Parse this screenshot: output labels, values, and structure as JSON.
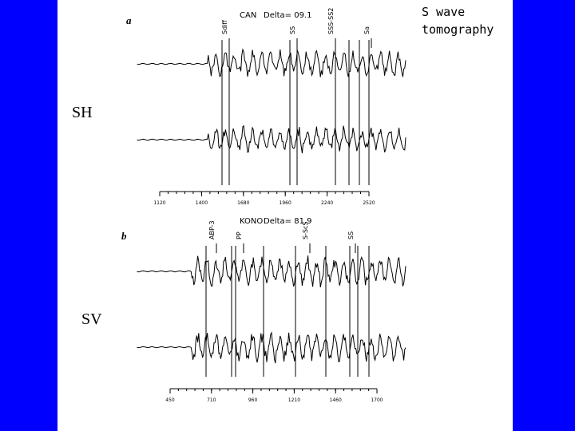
{
  "title": [
    "S wave",
    "tomography"
  ],
  "panels": [
    {
      "label": "a",
      "component": "SH",
      "station": "CAN",
      "delta": "Delta= 09.1",
      "phases": [
        "Sdiff",
        "SS",
        "SSS-SS2",
        "Sa"
      ],
      "ticks": [
        "1120",
        "1400",
        "1680",
        "1960",
        "2240",
        "2520"
      ]
    },
    {
      "label": "b",
      "component": "SV",
      "station": "KONO",
      "delta": "Delta= 81.9",
      "phases": [
        "ABP-3",
        "PP",
        "S-ScS",
        "SS"
      ],
      "ticks": [
        "450",
        "710",
        "960",
        "1210",
        "1460",
        "1700"
      ]
    }
  ]
}
